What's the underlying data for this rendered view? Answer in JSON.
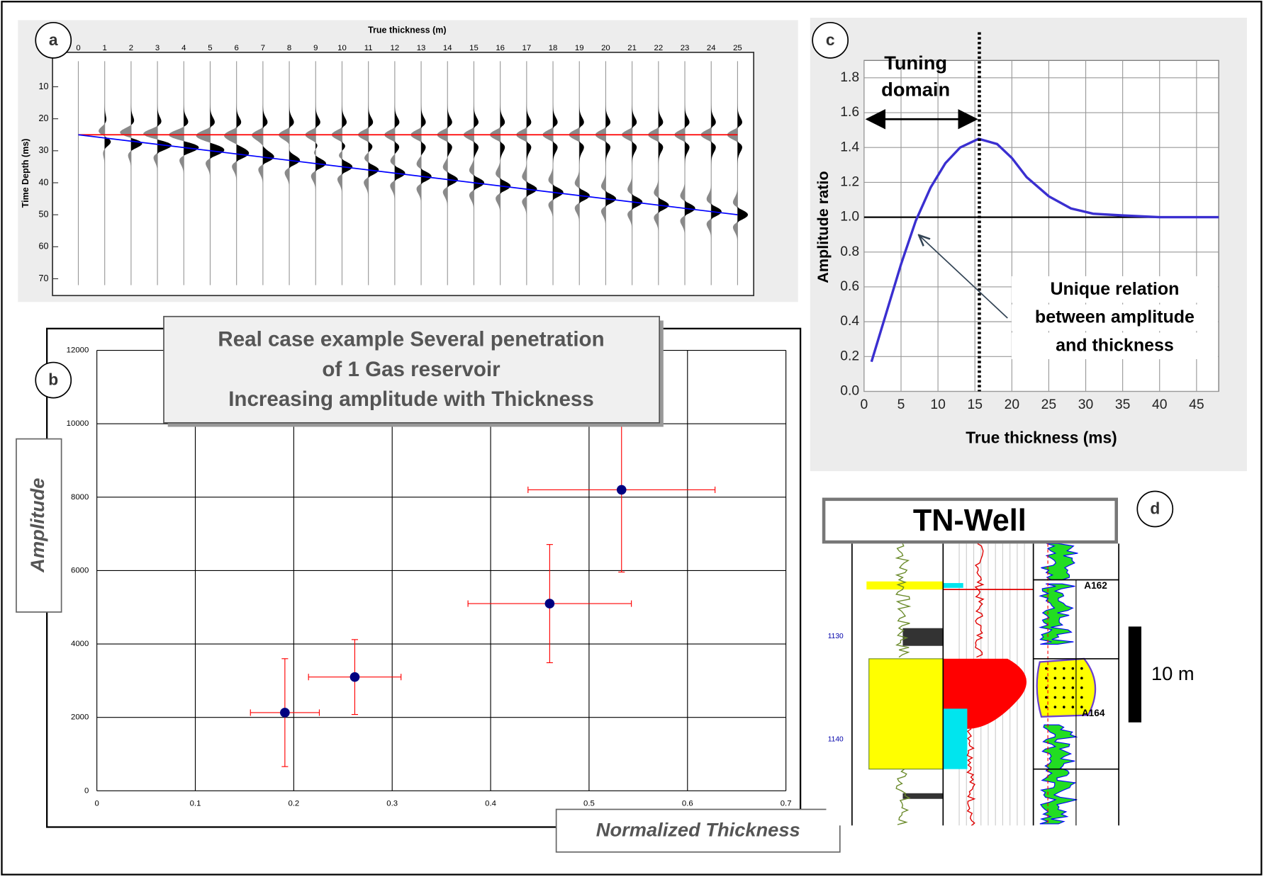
{
  "panel_labels": [
    "a",
    "b",
    "c",
    "d"
  ],
  "chart_data": [
    {
      "type": "wedge",
      "title": "True thickness (m)",
      "y_label": "Time Depth (ms)",
      "x": [
        0,
        25
      ],
      "series": [
        {
          "color": "#ff0000",
          "values": [
            25,
            25
          ]
        },
        {
          "color": "#0000ff",
          "values": [
            25,
            50
          ]
        }
      ],
      "xlim": [
        0,
        25
      ],
      "xticks": [
        0,
        1,
        2,
        3,
        4,
        5,
        6,
        7,
        8,
        9,
        10,
        11,
        12,
        13,
        14,
        15,
        16,
        17,
        18,
        19,
        20,
        21,
        22,
        23,
        24,
        25
      ],
      "ylim": [
        0,
        75
      ],
      "yticks": [
        10,
        20,
        30,
        40,
        50,
        60,
        70
      ]
    },
    {
      "type": "scatter",
      "title": [
        "Real case example Several penetration",
        "of 1 Gas reservoir",
        "Increasing amplitude with Thickness"
      ],
      "x_label": "Normalized Thickness",
      "y_label": "Amplitude",
      "x": [
        0.191,
        0.262,
        0.46,
        0.533
      ],
      "values": [
        2130,
        3100,
        5100,
        8200
      ],
      "x_err": [
        0.035,
        0.047,
        0.083,
        0.095
      ],
      "y_err": [
        1470,
        1020,
        1610,
        2240
      ],
      "color": "#000080",
      "error_color": "#ff0000",
      "xlim": [
        0,
        0.7
      ],
      "xticks": [
        0,
        0.1,
        0.2,
        0.3,
        0.4,
        0.5,
        0.6,
        0.7
      ],
      "ylim": [
        0,
        12000
      ],
      "yticks": [
        0,
        2000,
        4000,
        6000,
        8000,
        10000,
        12000
      ],
      "grid": true
    },
    {
      "type": "line",
      "x_label": "True thickness (ms)",
      "y_label": "Amplitude ratio",
      "annotations": [
        "Tuning",
        "domain",
        "Unique relation",
        "between amplitude",
        "and thickness"
      ],
      "x": [
        1,
        3,
        5,
        7,
        9,
        11,
        13,
        15.5,
        18,
        20,
        22,
        25,
        28,
        31,
        35,
        40,
        48
      ],
      "series": [
        {
          "color": "#3a2fd0",
          "values": [
            0.17,
            0.45,
            0.73,
            0.98,
            1.17,
            1.31,
            1.4,
            1.45,
            1.42,
            1.34,
            1.23,
            1.12,
            1.05,
            1.02,
            1.01,
            1.0,
            1.0
          ]
        }
      ],
      "tuning_x": 15.6,
      "reference_y": 1.0,
      "xlim": [
        0,
        48
      ],
      "xticks": [
        0,
        5,
        10,
        15,
        20,
        25,
        30,
        35,
        40,
        45
      ],
      "ylim": [
        0,
        1.9
      ],
      "yticks": [
        {
          "value": 0,
          "label": "0.0"
        },
        0.2,
        0.4,
        0.6,
        0.8,
        {
          "value": 1,
          "label": "1.0"
        },
        1.2,
        1.4,
        1.6,
        1.8
      ],
      "grid": true
    }
  ],
  "well_log": {
    "title": "TN-Well",
    "scale_label": "10 m",
    "markers": [
      "A162",
      "A164"
    ],
    "depths": [
      "1130",
      "1140"
    ]
  }
}
